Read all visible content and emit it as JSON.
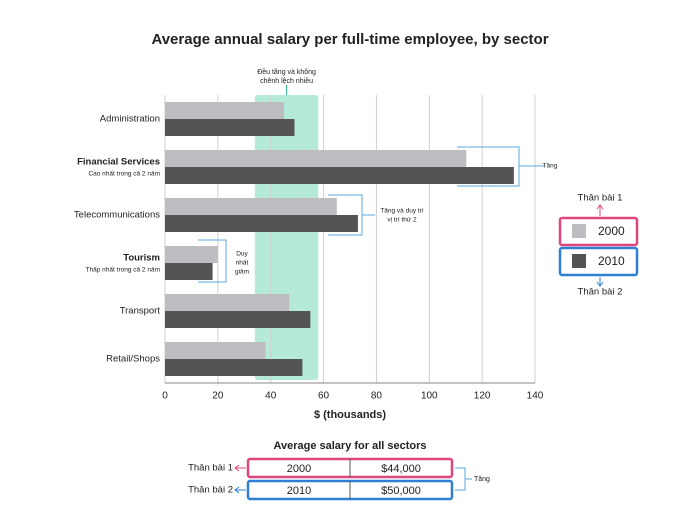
{
  "chart_data": {
    "type": "bar",
    "orientation": "horizontal",
    "title": "Average annual salary per full-time employee, by sector",
    "xlabel": "$ (thousands)",
    "categories": [
      "Administration",
      "Financial Services",
      "Telecommunications",
      "Tourism",
      "Transport",
      "Retail/Shops"
    ],
    "category_notes": [
      null,
      "Cao nhất trong cả 2 năm",
      null,
      "Thấp nhất trong cả 2 năm",
      null,
      null
    ],
    "series": [
      {
        "name": "2000",
        "color": "#bdbdc1",
        "values": [
          45,
          114,
          65,
          20,
          47,
          38
        ]
      },
      {
        "name": "2010",
        "color": "#545454",
        "values": [
          49,
          132,
          73,
          18,
          55,
          52
        ]
      }
    ],
    "xlim": [
      0,
      140
    ],
    "xticks": [
      0,
      20,
      40,
      60,
      80,
      100,
      120,
      140
    ],
    "grid": true,
    "highlight": {
      "range": [
        34,
        58
      ],
      "label": [
        "Đều tăng và không",
        "chênh lệch nhiều"
      ]
    },
    "annotations": [
      [
        "Tăng"
      ],
      [
        "Tăng và duy trì",
        "vị trí thứ 2"
      ],
      [
        "Duy",
        "nhất",
        "giảm"
      ]
    ],
    "legend_notes": [
      "Thân bài 1",
      "Thân bài 2"
    ]
  },
  "summary_table": {
    "title": "Average salary for all sectors",
    "rows": [
      [
        "2000",
        "$44,000"
      ],
      [
        "2010",
        "$50,000"
      ]
    ],
    "row_notes": [
      "Thân bài 1",
      "Thân bài 2"
    ],
    "change_note": "Tăng"
  }
}
